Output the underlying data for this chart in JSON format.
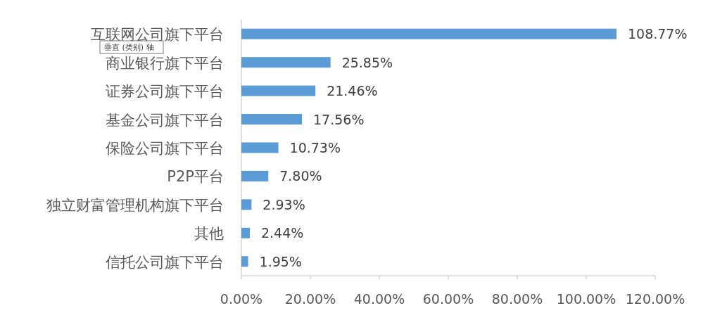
{
  "chart_data": {
    "type": "bar",
    "orientation": "horizontal",
    "categories": [
      "互联网公司旗下平台",
      "商业银行旗下平台",
      "证券公司旗下平台",
      "基金公司旗下平台",
      "保险公司旗下平台",
      "P2P平台",
      "独立财富管理机构旗下平台",
      "其他",
      "信托公司旗下平台"
    ],
    "values": [
      108.77,
      25.85,
      21.46,
      17.56,
      10.73,
      7.8,
      2.93,
      2.44,
      1.95
    ],
    "value_labels": [
      "108.77%",
      "25.85%",
      "21.46%",
      "17.56%",
      "10.73%",
      "7.80%",
      "2.93%",
      "2.44%",
      "1.95%"
    ],
    "color": "#5b9bd5",
    "xlim": [
      0,
      120
    ],
    "xticks": [
      {
        "value": 0,
        "label": "0.00%"
      },
      {
        "value": 20,
        "label": "20.00%"
      },
      {
        "value": 40,
        "label": "40.00%"
      },
      {
        "value": 60,
        "label": "60.00%"
      },
      {
        "value": 80,
        "label": "80.00%"
      },
      {
        "value": 100,
        "label": "100.00%"
      },
      {
        "value": 120,
        "label": "120.00%"
      }
    ],
    "annotations": [
      "垂直 (类别) 轴"
    ]
  }
}
